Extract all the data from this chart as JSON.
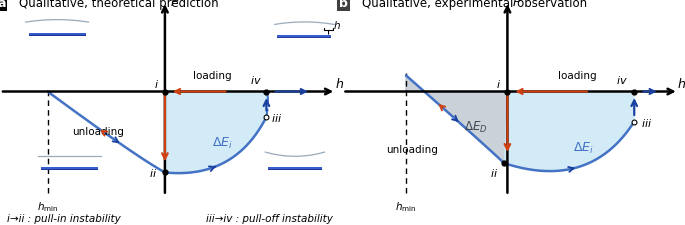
{
  "panel_a_title": "Qualitative, theoretical prediction",
  "panel_b_title": "Qualitative, experimental observation",
  "caption_left": "i→ii : pull-in instability",
  "caption_right": "iii→iv : pull-off instability",
  "light_blue_fill": "#cce8f5",
  "gray_fill": "#8a9aaa",
  "curve_blue": "#4472c4",
  "arrow_red": "#d04010",
  "arrow_blue": "#1a40a0",
  "surface_blue_dark": "#2a4a8a",
  "surface_blue_mid": "#4a6aaa",
  "black": "#000000",
  "white": "#ffffff"
}
